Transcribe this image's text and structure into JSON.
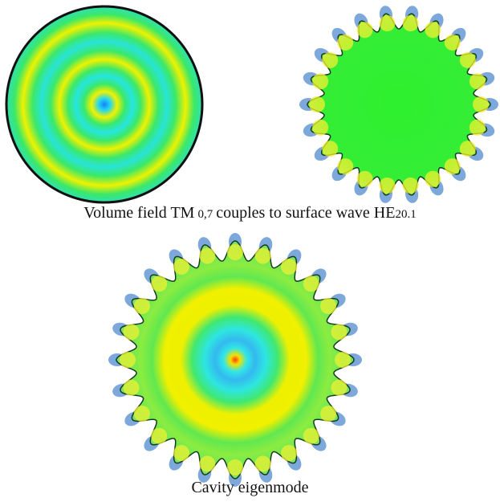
{
  "captions": {
    "top": {
      "parts": [
        "Volume field TM",
        "0,7",
        "couples to surface wave HE",
        "20.1"
      ]
    },
    "bottom": "Cavity eigenmode"
  }
}
